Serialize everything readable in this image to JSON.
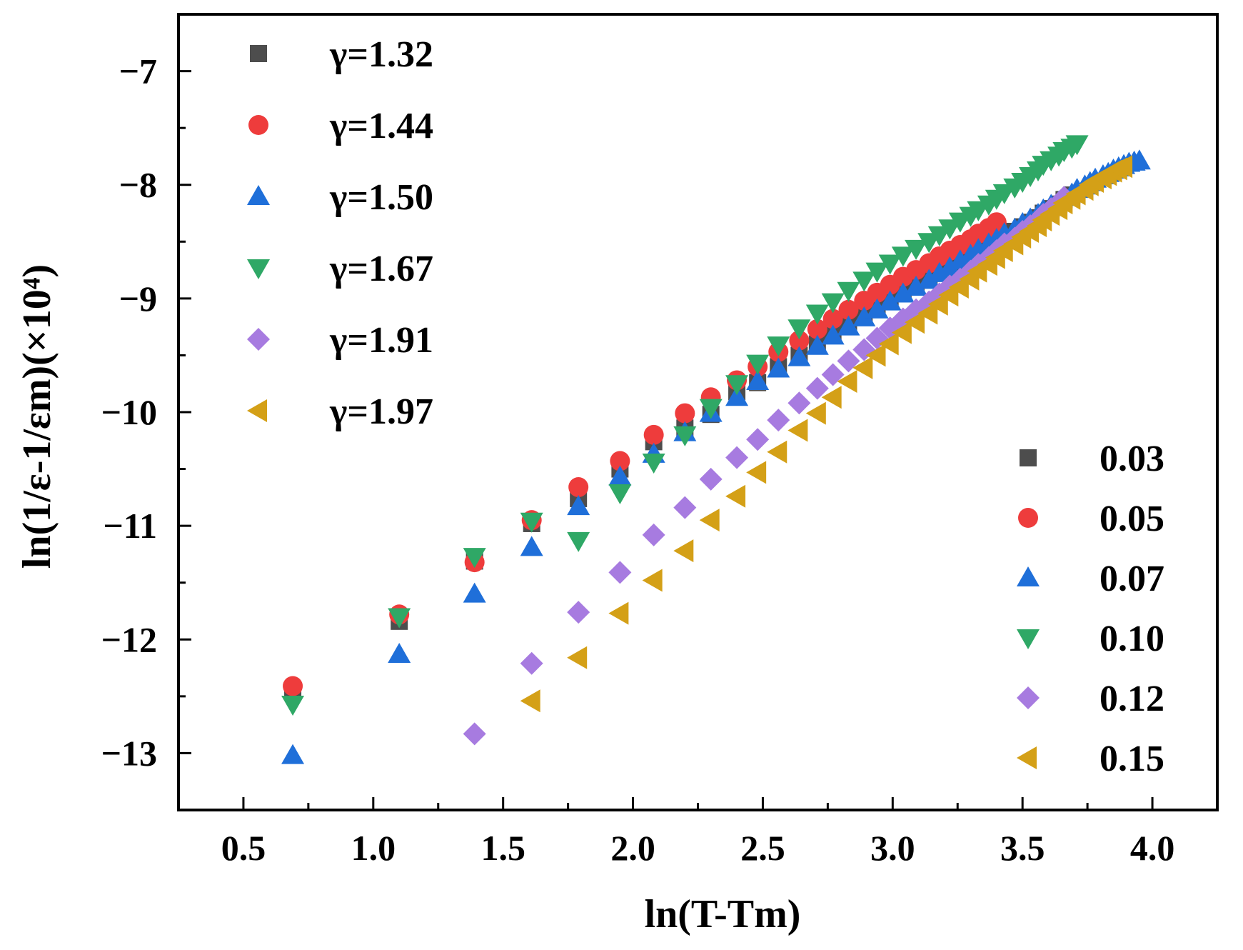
{
  "chart_data": {
    "type": "scatter",
    "title": "",
    "xlabel": "ln(T-Tm)",
    "ylabel": "ln(1/ε-1/εm)(×10⁴)",
    "x_ticks": [
      "0.5",
      "1.0",
      "1.5",
      "2.0",
      "2.5",
      "3.0",
      "3.5",
      "4.0"
    ],
    "y_ticks": [
      "−7",
      "−8",
      "−9",
      "−10",
      "−11",
      "−12",
      "−13"
    ],
    "xlim": [
      0.25,
      4.25
    ],
    "ylim": [
      -13.5,
      -6.5
    ],
    "grid": false,
    "legend_gamma_position": "top-left",
    "legend_series_position": "bottom-right",
    "series": [
      {
        "name": "0.03",
        "gamma": "γ=1.32",
        "marker": "square",
        "color": "#4d4d4d",
        "x": [
          0.69,
          1.1,
          1.39,
          1.61,
          1.79,
          1.95,
          2.08,
          2.2,
          2.3,
          2.4,
          2.48,
          2.56,
          2.64,
          2.71,
          2.77,
          2.83,
          2.89,
          2.94,
          2.99,
          3.04,
          3.09,
          3.14,
          3.18,
          3.22,
          3.26,
          3.3,
          3.33,
          3.37,
          3.4,
          3.43,
          3.47,
          3.5,
          3.53,
          3.56,
          3.58,
          3.61,
          3.64,
          3.66,
          3.69
        ],
        "y": [
          -12.45,
          -11.84,
          -11.31,
          -10.98,
          -10.76,
          -10.5,
          -10.26,
          -10.14,
          -10.02,
          -9.82,
          -9.74,
          -9.6,
          -9.5,
          -9.4,
          -9.3,
          -9.22,
          -9.15,
          -9.07,
          -9.0,
          -8.94,
          -8.88,
          -8.82,
          -8.77,
          -8.72,
          -8.67,
          -8.62,
          -8.58,
          -8.53,
          -8.49,
          -8.45,
          -8.41,
          -8.37,
          -8.33,
          -8.29,
          -8.25,
          -8.21,
          -8.17,
          -8.13,
          -8.09
        ]
      },
      {
        "name": "0.05",
        "gamma": "γ=1.44",
        "marker": "circle",
        "color": "#ee3c3c",
        "x": [
          0.69,
          1.1,
          1.39,
          1.61,
          1.79,
          1.95,
          2.08,
          2.2,
          2.3,
          2.4,
          2.48,
          2.56,
          2.64,
          2.71,
          2.77,
          2.83,
          2.89,
          2.94,
          2.99,
          3.04,
          3.09,
          3.14,
          3.18,
          3.22,
          3.26,
          3.3,
          3.33,
          3.37,
          3.4
        ],
        "y": [
          -12.41,
          -11.78,
          -11.32,
          -10.95,
          -10.66,
          -10.43,
          -10.2,
          -10.01,
          -9.87,
          -9.72,
          -9.6,
          -9.47,
          -9.37,
          -9.27,
          -9.18,
          -9.1,
          -9.02,
          -8.95,
          -8.88,
          -8.81,
          -8.75,
          -8.69,
          -8.63,
          -8.58,
          -8.53,
          -8.48,
          -8.43,
          -8.38,
          -8.33
        ]
      },
      {
        "name": "0.07",
        "gamma": "γ=1.50",
        "marker": "triangle-up",
        "color": "#1f6fd9",
        "x": [
          0.69,
          1.1,
          1.39,
          1.61,
          1.79,
          1.95,
          2.08,
          2.2,
          2.3,
          2.4,
          2.48,
          2.56,
          2.64,
          2.71,
          2.77,
          2.83,
          2.89,
          2.94,
          2.99,
          3.04,
          3.09,
          3.14,
          3.18,
          3.22,
          3.26,
          3.3,
          3.33,
          3.37,
          3.4,
          3.43,
          3.47,
          3.5,
          3.53,
          3.56,
          3.58,
          3.61,
          3.64,
          3.66,
          3.69,
          3.71,
          3.74,
          3.76,
          3.78,
          3.81,
          3.83,
          3.85,
          3.87,
          3.89,
          3.91,
          3.93,
          3.95
        ],
        "y": [
          -13.02,
          -12.13,
          -11.6,
          -11.19,
          -10.83,
          -10.57,
          -10.37,
          -10.18,
          -10.01,
          -9.87,
          -9.73,
          -9.62,
          -9.52,
          -9.42,
          -9.33,
          -9.25,
          -9.17,
          -9.1,
          -9.03,
          -8.96,
          -8.9,
          -8.84,
          -8.78,
          -8.73,
          -8.67,
          -8.62,
          -8.57,
          -8.52,
          -8.48,
          -8.43,
          -8.39,
          -8.34,
          -8.3,
          -8.26,
          -8.22,
          -8.18,
          -8.15,
          -8.11,
          -8.08,
          -8.04,
          -8.01,
          -7.98,
          -7.95,
          -7.92,
          -7.9,
          -7.87,
          -7.85,
          -7.83,
          -7.81,
          -7.8,
          -7.79
        ]
      },
      {
        "name": "0.10",
        "gamma": "γ=1.67",
        "marker": "triangle-down",
        "color": "#2fa866",
        "x": [
          0.69,
          1.1,
          1.39,
          1.61,
          1.79,
          1.95,
          2.08,
          2.2,
          2.3,
          2.4,
          2.48,
          2.56,
          2.64,
          2.71,
          2.77,
          2.83,
          2.89,
          2.94,
          2.99,
          3.04,
          3.09,
          3.14,
          3.18,
          3.22,
          3.26,
          3.3,
          3.33,
          3.37,
          3.4,
          3.43,
          3.47,
          3.5,
          3.53,
          3.56,
          3.58,
          3.61,
          3.64,
          3.66,
          3.69,
          3.71
        ],
        "y": [
          -12.57,
          -11.8,
          -11.27,
          -10.96,
          -11.13,
          -10.71,
          -10.44,
          -10.2,
          -9.96,
          -9.75,
          -9.57,
          -9.41,
          -9.26,
          -9.13,
          -9.03,
          -8.93,
          -8.84,
          -8.76,
          -8.69,
          -8.62,
          -8.56,
          -8.5,
          -8.44,
          -8.38,
          -8.32,
          -8.27,
          -8.22,
          -8.17,
          -8.12,
          -8.07,
          -8.02,
          -7.97,
          -7.92,
          -7.87,
          -7.82,
          -7.78,
          -7.74,
          -7.7,
          -7.67,
          -7.64
        ]
      },
      {
        "name": "0.12",
        "gamma": "γ=1.91",
        "marker": "diamond",
        "color": "#a77be0",
        "x": [
          1.39,
          1.61,
          1.79,
          1.95,
          2.08,
          2.2,
          2.3,
          2.4,
          2.48,
          2.56,
          2.64,
          2.71,
          2.77,
          2.83,
          2.89,
          2.94,
          2.99,
          3.04,
          3.09,
          3.14,
          3.18,
          3.22,
          3.26,
          3.3,
          3.33,
          3.37,
          3.4,
          3.43,
          3.47,
          3.5,
          3.53,
          3.56,
          3.58,
          3.61,
          3.64,
          3.66
        ],
        "y": [
          -12.83,
          -12.21,
          -11.76,
          -11.41,
          -11.08,
          -10.84,
          -10.59,
          -10.4,
          -10.24,
          -10.07,
          -9.92,
          -9.79,
          -9.67,
          -9.55,
          -9.45,
          -9.35,
          -9.26,
          -9.18,
          -9.1,
          -9.03,
          -8.96,
          -8.89,
          -8.83,
          -8.76,
          -8.7,
          -8.64,
          -8.58,
          -8.52,
          -8.47,
          -8.41,
          -8.36,
          -8.31,
          -8.26,
          -8.21,
          -8.16,
          -8.11
        ]
      },
      {
        "name": "0.15",
        "gamma": "γ=1.97",
        "marker": "triangle-left",
        "color": "#d4a017",
        "x": [
          1.61,
          1.79,
          1.95,
          2.08,
          2.2,
          2.3,
          2.4,
          2.48,
          2.56,
          2.64,
          2.71,
          2.77,
          2.83,
          2.89,
          2.94,
          2.99,
          3.04,
          3.09,
          3.14,
          3.18,
          3.22,
          3.26,
          3.3,
          3.33,
          3.37,
          3.4,
          3.43,
          3.47,
          3.5,
          3.53,
          3.56,
          3.58,
          3.61,
          3.64,
          3.66,
          3.69,
          3.71,
          3.74,
          3.76,
          3.78,
          3.81,
          3.83,
          3.85,
          3.87,
          3.89
        ],
        "y": [
          -12.54,
          -12.16,
          -11.77,
          -11.48,
          -11.22,
          -10.95,
          -10.74,
          -10.53,
          -10.35,
          -10.16,
          -10.01,
          -9.87,
          -9.73,
          -9.61,
          -9.5,
          -9.4,
          -9.3,
          -9.21,
          -9.13,
          -9.05,
          -8.97,
          -8.9,
          -8.83,
          -8.76,
          -8.7,
          -8.64,
          -8.58,
          -8.52,
          -8.46,
          -8.41,
          -8.36,
          -8.31,
          -8.26,
          -8.21,
          -8.16,
          -8.12,
          -8.08,
          -8.04,
          -8.0,
          -7.97,
          -7.94,
          -7.91,
          -7.88,
          -7.86,
          -7.84
        ]
      }
    ]
  }
}
